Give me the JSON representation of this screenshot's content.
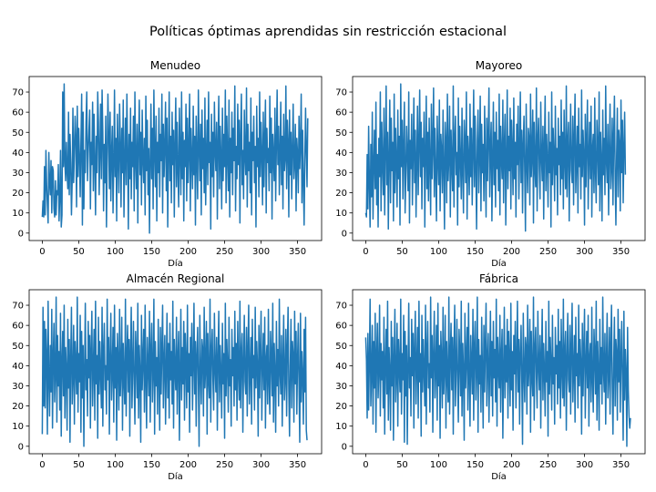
{
  "figure": {
    "title": "Políticas óptimas aprendidas sin restricción estacional"
  },
  "colors": {
    "series": "#1f77b4"
  },
  "chart_data": [
    {
      "type": "line",
      "title": "Menudeo",
      "xlabel": "Día",
      "ylabel": "",
      "xlim": [
        -18,
        383
      ],
      "ylim": [
        -3.7,
        77.7
      ],
      "xticks": [
        0,
        50,
        100,
        150,
        200,
        250,
        300,
        350
      ],
      "yticks": [
        0,
        10,
        20,
        30,
        40,
        50,
        60,
        70
      ],
      "n_points": 365,
      "grid": false,
      "seed": 11,
      "y": [
        8,
        16,
        8,
        33,
        9,
        41,
        24,
        14,
        5,
        40,
        25,
        19,
        36,
        10,
        33,
        31,
        12,
        8,
        26,
        9,
        21,
        19,
        34,
        6,
        18,
        41,
        3,
        9,
        70,
        33,
        74,
        35,
        26,
        45,
        30,
        22,
        60,
        19,
        49,
        35,
        9,
        26,
        62,
        25,
        40,
        58,
        47,
        13,
        63,
        28,
        52,
        38,
        18,
        45,
        69,
        4,
        60,
        12,
        41,
        30,
        55,
        70,
        26,
        40,
        51,
        61,
        12,
        45,
        34,
        65,
        21,
        59,
        36,
        9,
        48,
        30,
        70,
        55,
        19,
        41,
        64,
        27,
        71,
        50,
        11,
        44,
        25,
        58,
        3,
        37,
        69,
        48,
        22,
        60,
        16,
        40,
        53,
        10,
        33,
        71,
        28,
        47,
        6,
        59,
        38,
        20,
        64,
        44,
        13,
        52,
        30,
        66,
        8,
        35,
        57,
        24,
        69,
        41,
        2,
        49,
        27,
        62,
        17,
        45,
        33,
        58,
        11,
        70,
        36,
        22,
        54,
        5,
        43,
        66,
        29,
        50,
        14,
        61,
        38,
        25,
        47,
        9,
        68,
        31,
        56,
        19,
        42,
        0,
        35,
        64,
        27,
        52,
        12,
        71,
        40,
        23,
        58,
        6,
        45,
        30,
        62,
        18,
        49,
        36,
        69,
        10,
        54,
        28,
        43,
        65,
        21,
        57,
        3,
        39,
        70,
        26,
        48,
        15,
        60,
        34,
        51,
        8,
        44,
        67,
        23,
        55,
        31,
        13,
        62,
        40,
        19,
        70,
        27,
        50,
        6,
        46,
        33,
        64,
        16,
        57,
        25,
        41,
        69,
        11,
        52,
        36,
        22,
        63,
        29,
        48,
        4,
        58,
        38,
        17,
        71,
        43,
        26,
        54,
        9,
        61,
        32,
        47,
        20,
        67,
        14,
        39,
        56,
        24,
        70,
        35,
        45,
        2,
        59,
        28,
        50,
        18,
        65,
        41,
        31,
        55,
        7,
        44,
        68,
        22,
        53,
        37,
        12,
        62,
        26,
        49,
        33,
        71,
        15,
        58,
        40,
        21,
        66,
        8,
        47,
        30,
        60,
        19,
        52,
        36,
        73,
        11,
        43,
        27,
        64,
        34,
        56,
        5,
        48,
        69,
        24,
        41,
        17,
        61,
        38,
        29,
        72,
        13,
        54,
        31,
        45,
        20,
        67,
        9,
        50,
        36,
        58,
        25,
        43,
        3,
        63,
        33,
        47,
        18,
        70,
        28,
        55,
        39,
        14,
        60,
        23,
        46,
        66,
        10,
        52,
        35,
        42,
        21,
        68,
        30,
        57,
        7,
        49,
        38,
        26,
        62,
        16,
        44,
        71,
        34,
        53,
        19,
        40,
        65,
        24,
        48,
        12,
        59,
        31,
        37,
        73,
        22,
        56,
        45,
        8,
        61,
        29,
        50,
        17,
        42,
        64,
        27,
        35,
        54,
        11,
        47,
        39,
        20,
        58,
        32,
        44,
        69,
        15,
        51,
        26,
        4,
        36,
        62,
        41,
        23,
        57,
        12,
        48,
        33,
        50,
        18
      ]
    },
    {
      "type": "line",
      "title": "Mayoreo",
      "xlabel": "Día",
      "ylabel": "",
      "xlim": [
        -18,
        383
      ],
      "ylim": [
        -3.7,
        77.7
      ],
      "xticks": [
        0,
        50,
        100,
        150,
        200,
        250,
        300,
        350
      ],
      "yticks": [
        0,
        10,
        20,
        30,
        40,
        50,
        60,
        70
      ],
      "n_points": 365,
      "grid": false,
      "seed": 23,
      "y": [
        10,
        8,
        39,
        12,
        53,
        25,
        3,
        44,
        18,
        60,
        7,
        33,
        51,
        22,
        65,
        14,
        39,
        3,
        47,
        28,
        70,
        11,
        55,
        35,
        19,
        62,
        9,
        41,
        73,
        24,
        50,
        2,
        38,
        66,
        15,
        57,
        31,
        45,
        6,
        69,
        20,
        52,
        36,
        13,
        61,
        27,
        48,
        4,
        74,
        33,
        56,
        17,
        43,
        65,
        10,
        29,
        53,
        38,
        21,
        70,
        5,
        46,
        32,
        59,
        14,
        40,
        67,
        25,
        51,
        8,
        36,
        63,
        19,
        44,
        71,
        28,
        55,
        12,
        47,
        33,
        60,
        3,
        39,
        68,
        22,
        50,
        16,
        57,
        35,
        9,
        64,
        27,
        43,
        72,
        18,
        52,
        30,
        6,
        58,
        37,
        24,
        66,
        11,
        49,
        41,
        20,
        61,
        31,
        2,
        55,
        45,
        15,
        69,
        26,
        38,
        63,
        8,
        51,
        34,
        21,
        73,
        13,
        46,
        58,
        29,
        40,
        4,
        67,
        23,
        53,
        36,
        17,
        62,
        31,
        10,
        56,
        44,
        25,
        70,
        7,
        48,
        37,
        19,
        64,
        28,
        52,
        14,
        41,
        71,
        23,
        58,
        33,
        2,
        46,
        61,
        20,
        39,
        68,
        11,
        54,
        30,
        44,
        16,
        63,
        35,
        8,
        57,
        26,
        49,
        72,
        18,
        42,
        55,
        6,
        37,
        65,
        24,
        50,
        13,
        60,
        32,
        46,
        21,
        69,
        9,
        53,
        38,
        27,
        66,
        15,
        43,
        59,
        4,
        35,
        71,
        22,
        48,
        31,
        62,
        12,
        56,
        41,
        19,
        67,
        27,
        45,
        8,
        54,
        34,
        63,
        17,
        40,
        70,
        25,
        51,
        10,
        44,
        58,
        30,
        1,
        64,
        36,
        20,
        52,
        47,
        14,
        69,
        28,
        39,
        61,
        5,
        55,
        33,
        23,
        72,
        11,
        46,
        57,
        32,
        17,
        65,
        38,
        26,
        53,
        7,
        43,
        68,
        21,
        49,
        35,
        13,
        60,
        30,
        45,
        3,
        70,
        24,
        52,
        39,
        16,
        63,
        29,
        42,
        9,
        57,
        34,
        48,
        19,
        66,
        27,
        50,
        12,
        61,
        37,
        22,
        73,
        18,
        45,
        55,
        6,
        40,
        64,
        31,
        25,
        58,
        14,
        47,
        69,
        20,
        36,
        53,
        10,
        62,
        33,
        44,
        17,
        71,
        28,
        51,
        39,
        4,
        59,
        23,
        46,
        66,
        12,
        38,
        55,
        27,
        63,
        8,
        42,
        49,
        20,
        67,
        31,
        15,
        56,
        43,
        24,
        70,
        11,
        50,
        35,
        6,
        61,
        29,
        47,
        19,
        73,
        36,
        25,
        54,
        9,
        41,
        64,
        22,
        33,
        57,
        14,
        48,
        68,
        27,
        4,
        39,
        62,
        18,
        51,
        44,
        11,
        66,
        30,
        56,
        15,
        42,
        60,
        29
      ]
    },
    {
      "type": "line",
      "title": "Almacén Regional",
      "xlabel": "Día",
      "ylabel": "",
      "xlim": [
        -18,
        383
      ],
      "ylim": [
        -3.7,
        77.7
      ],
      "xticks": [
        0,
        50,
        100,
        150,
        200,
        250,
        300,
        350
      ],
      "yticks": [
        0,
        10,
        20,
        30,
        40,
        50,
        60,
        70
      ],
      "n_points": 365,
      "grid": false,
      "seed": 37,
      "y": [
        6,
        69,
        20,
        62,
        19,
        58,
        44,
        6,
        72,
        33,
        15,
        50,
        27,
        68,
        9,
        44,
        61,
        22,
        36,
        74,
        12,
        55,
        30,
        47,
        18,
        66,
        5,
        41,
        57,
        25,
        70,
        14,
        49,
        38,
        8,
        63,
        29,
        53,
        2,
        44,
        69,
        21,
        35,
        60,
        11,
        52,
        40,
        26,
        74,
        17,
        46,
        32,
        65,
        7,
        57,
        24,
        50,
        0,
        38,
        71,
        28,
        43,
        15,
        62,
        34,
        55,
        9,
        48,
        67,
        20,
        39,
        58,
        13,
        72,
        31,
        45,
        4,
        64,
        26,
        52,
        36,
        19,
        69,
        10,
        47,
        61,
        28,
        40,
        16,
        73,
        33,
        54,
        6,
        45,
        66,
        23,
        37,
        59,
        12,
        70,
        29,
        49,
        3,
        56,
        42,
        18,
        68,
        25,
        38,
        64,
        8,
        51,
        34,
        21,
        73,
        15,
        44,
        60,
        27,
        53,
        5,
        47,
        69,
        19,
        39,
        62,
        31,
        11,
        57,
        45,
        24,
        71,
        14,
        50,
        36,
        2,
        65,
        28,
        43,
        58,
        17,
        70,
        33,
        9,
        54,
        40,
        25,
        67,
        12,
        48,
        61,
        22,
        37,
        73,
        6,
        52,
        30,
        44,
        16,
        63,
        35,
        8,
        59,
        26,
        49,
        70,
        19,
        42,
        55,
        11,
        38,
        66,
        24,
        51,
        14,
        61,
        33,
        47,
        21,
        72,
        9,
        53,
        38,
        28,
        64,
        16,
        44,
        57,
        3,
        36,
        68,
        23,
        49,
        31,
        62,
        13,
        56,
        42,
        19,
        70,
        27,
        46,
        7,
        54,
        35,
        61,
        18,
        41,
        71,
        26,
        52,
        10,
        45,
        59,
        32,
        0,
        65,
        37,
        21,
        53,
        48,
        15,
        69,
        29,
        40,
        62,
        6,
        56,
        34,
        24,
        73,
        12,
        47,
        58,
        33,
        18,
        66,
        39,
        27,
        54,
        8,
        44,
        67,
        22,
        50,
        36,
        14,
        61,
        31,
        46,
        4,
        71,
        25,
        53,
        40,
        17,
        64,
        30,
        43,
        10,
        58,
        35,
        49,
        20,
        67,
        28,
        51,
        13,
        62,
        38,
        23,
        72,
        19,
        46,
        56,
        7,
        41,
        65,
        32,
        26,
        59,
        15,
        48,
        70,
        21,
        37,
        54,
        11,
        63,
        34,
        45,
        18,
        69,
        29,
        52,
        40,
        5,
        60,
        24,
        47,
        67,
        13,
        39,
        56,
        28,
        64,
        9,
        43,
        50,
        21,
        68,
        32,
        16,
        57,
        44,
        25,
        71,
        12,
        51,
        36,
        7,
        62,
        30,
        48,
        20,
        73,
        37,
        26,
        55,
        10,
        42,
        65,
        23,
        34,
        58,
        15,
        49,
        69,
        28,
        5,
        40,
        63,
        19,
        52,
        45,
        12,
        67,
        31,
        57,
        16,
        43,
        61,
        30,
        2,
        66,
        22,
        47,
        35,
        11,
        58,
        27,
        64,
        8,
        3
      ]
    },
    {
      "type": "line",
      "title": "Fábrica",
      "xlabel": "Día",
      "ylabel": "",
      "xlim": [
        -18,
        383
      ],
      "ylim": [
        -3.7,
        77.7
      ],
      "xticks": [
        0,
        50,
        100,
        150,
        200,
        250,
        300,
        350
      ],
      "yticks": [
        0,
        10,
        20,
        30,
        40,
        50,
        60,
        70
      ],
      "n_points": 365,
      "grid": false,
      "seed": 53,
      "y": [
        54,
        43,
        14,
        56,
        18,
        42,
        73,
        20,
        37,
        60,
        11,
        52,
        29,
        66,
        7,
        45,
        61,
        24,
        38,
        70,
        15,
        51,
        33,
        47,
        19,
        64,
        6,
        41,
        58,
        26,
        72,
        13,
        49,
        37,
        8,
        62,
        30,
        54,
        3,
        44,
        68,
        22,
        35,
        61,
        10,
        53,
        40,
        27,
        73,
        16,
        46,
        33,
        65,
        2,
        57,
        25,
        50,
        1,
        39,
        71,
        29,
        44,
        15,
        63,
        35,
        56,
        9,
        48,
        67,
        21,
        40,
        59,
        14,
        72,
        32,
        46,
        5,
        65,
        27,
        53,
        37,
        20,
        70,
        11,
        48,
        62,
        29,
        41,
        17,
        74,
        34,
        55,
        7,
        46,
        67,
        24,
        38,
        60,
        13,
        71,
        30,
        50,
        4,
        57,
        43,
        19,
        69,
        26,
        39,
        65,
        9,
        52,
        35,
        22,
        74,
        16,
        45,
        61,
        28,
        54,
        6,
        48,
        70,
        20,
        40,
        63,
        32,
        12,
        58,
        46,
        25,
        72,
        15,
        51,
        37,
        3,
        66,
        29,
        44,
        59,
        18,
        71,
        34,
        10,
        55,
        41,
        26,
        68,
        13,
        49,
        62,
        23,
        38,
        74,
        7,
        53,
        31,
        45,
        17,
        64,
        36,
        9,
        60,
        27,
        50,
        71,
        20,
        43,
        56,
        12,
        39,
        67,
        25,
        52,
        15,
        62,
        34,
        48,
        22,
        73,
        10,
        54,
        39,
        29,
        65,
        17,
        45,
        58,
        4,
        37,
        69,
        24,
        50,
        32,
        63,
        14,
        57,
        43,
        20,
        71,
        28,
        47,
        8,
        55,
        36,
        62,
        19,
        42,
        72,
        27,
        53,
        11,
        46,
        60,
        33,
        1,
        66,
        38,
        22,
        54,
        49,
        16,
        70,
        30,
        41,
        63,
        7,
        57,
        35,
        25,
        74,
        13,
        48,
        59,
        34,
        19,
        67,
        40,
        28,
        55,
        9,
        45,
        68,
        23,
        51,
        37,
        15,
        62,
        32,
        47,
        5,
        72,
        26,
        54,
        41,
        18,
        65,
        31,
        44,
        11,
        59,
        36,
        50,
        21,
        68,
        29,
        52,
        14,
        63,
        39,
        24,
        73,
        20,
        47,
        57,
        8,
        42,
        66,
        33,
        27,
        60,
        16,
        49,
        71,
        22,
        38,
        55,
        12,
        64,
        35,
        46,
        19,
        70,
        30,
        53,
        41,
        6,
        61,
        25,
        48,
        68,
        14,
        40,
        57,
        29,
        65,
        10,
        44,
        51,
        22,
        69,
        33,
        17,
        58,
        45,
        26,
        72,
        13,
        52,
        37,
        8,
        63,
        31,
        49,
        21,
        74,
        38,
        27,
        56,
        11,
        43,
        66,
        24,
        35,
        59,
        16,
        50,
        70,
        29,
        6,
        41,
        64,
        20,
        53,
        46,
        13,
        68,
        32,
        58,
        17,
        44,
        62,
        31,
        3,
        67,
        23,
        48,
        36,
        0,
        59,
        28,
        15,
        9,
        14
      ]
    }
  ]
}
